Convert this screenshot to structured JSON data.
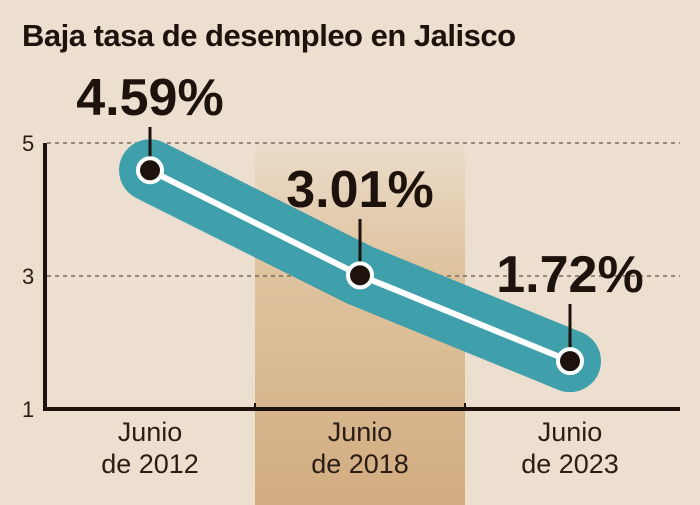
{
  "chart_data": {
    "type": "line",
    "title": "Baja tasa de desempleo en Jalisco",
    "categories": [
      [
        "Junio",
        "de 2012"
      ],
      [
        "Junio",
        "de 2018"
      ],
      [
        "Junio",
        "de 2023"
      ]
    ],
    "values": [
      4.59,
      3.01,
      1.72
    ],
    "data_labels": [
      "4.59%",
      "3.01%",
      "1.72%"
    ],
    "ylim": [
      1,
      5
    ],
    "yticks": [
      "1",
      "3",
      "5"
    ],
    "grid": "dashed horizontal at 3 and 5",
    "highlighted_category": 1,
    "colors": {
      "background": "#ecdfcf",
      "line_band": "#3f9fab",
      "line": "#ffffff",
      "marker": "#1d120c",
      "highlight": "#d6b48a"
    }
  }
}
